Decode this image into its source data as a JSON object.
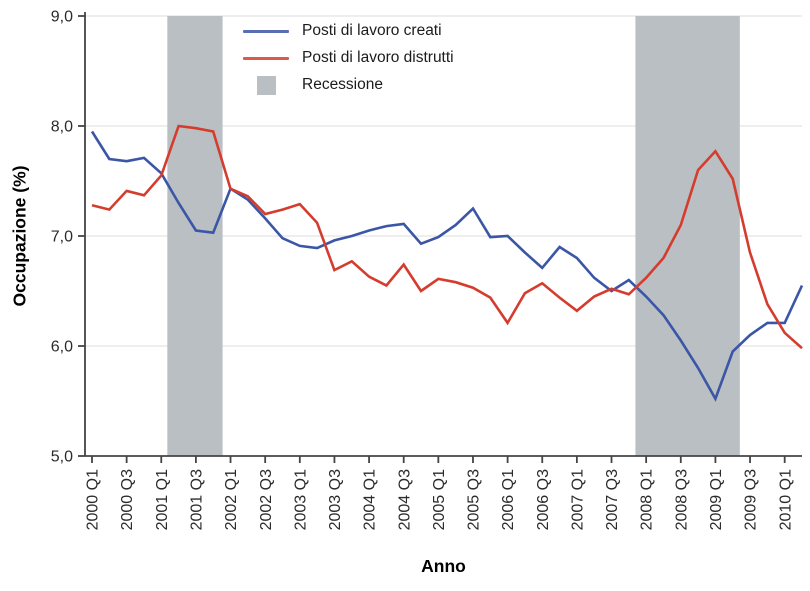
{
  "axes": {
    "x_title": "Anno",
    "y_title": "Occupazione (%)"
  },
  "legend": {
    "items": [
      {
        "label": "Posti di lavoro creati",
        "type": "line",
        "color": "#3b56a6"
      },
      {
        "label": "Posti di lavoro distrutti",
        "type": "line",
        "color": "#d43d2e"
      },
      {
        "label": "Recessione",
        "type": "box",
        "color": "#b9bfc2"
      }
    ]
  },
  "chart_data": {
    "type": "line",
    "title": "",
    "xlabel": "Anno",
    "ylabel": "Occupazione (%)",
    "ylim": [
      5.0,
      9.0
    ],
    "grid": "horizontal",
    "grid_color": "#e3e3e3",
    "axis_color": "#444444",
    "band_color": "#b9bfc2",
    "y_ticks": [
      {
        "value": 5.0,
        "label": "5,0"
      },
      {
        "value": 6.0,
        "label": "6,0"
      },
      {
        "value": 7.0,
        "label": "7,0"
      },
      {
        "value": 8.0,
        "label": "8,0"
      },
      {
        "value": 9.0,
        "label": "9,0"
      }
    ],
    "x_tick_step": 2,
    "x": [
      "2000 Q1",
      "2000 Q2",
      "2000 Q3",
      "2000 Q4",
      "2001 Q1",
      "2001 Q2",
      "2001 Q3",
      "2001 Q4",
      "2002 Q1",
      "2002 Q2",
      "2002 Q3",
      "2002 Q4",
      "2003 Q1",
      "2003 Q2",
      "2003 Q3",
      "2003 Q4",
      "2004 Q1",
      "2004 Q2",
      "2004 Q3",
      "2004 Q4",
      "2005 Q1",
      "2005 Q2",
      "2005 Q3",
      "2005 Q4",
      "2006 Q1",
      "2006 Q2",
      "2006 Q3",
      "2006 Q4",
      "2007 Q1",
      "2007 Q2",
      "2007 Q3",
      "2007 Q4",
      "2008 Q1",
      "2008 Q2",
      "2008 Q3",
      "2008 Q4",
      "2009 Q1",
      "2009 Q2",
      "2009 Q3",
      "2009 Q4",
      "2010 Q1",
      "2010 Q2"
    ],
    "series": [
      {
        "name": "Posti di lavoro creati",
        "color": "#3b56a6",
        "values": [
          7.95,
          7.7,
          7.68,
          7.71,
          7.57,
          7.3,
          7.05,
          7.03,
          7.43,
          7.33,
          7.16,
          6.98,
          6.91,
          6.89,
          6.96,
          7.0,
          7.05,
          7.09,
          7.11,
          6.93,
          6.99,
          7.1,
          7.25,
          6.99,
          7.0,
          6.85,
          6.71,
          6.9,
          6.8,
          6.62,
          6.5,
          6.6,
          6.45,
          6.28,
          6.05,
          5.8,
          5.52,
          5.95,
          6.1,
          6.21,
          6.21,
          6.55
        ]
      },
      {
        "name": "Posti di lavoro distrutti",
        "color": "#d43d2e",
        "values": [
          7.28,
          7.24,
          7.41,
          7.37,
          7.55,
          8.0,
          7.98,
          7.95,
          7.43,
          7.36,
          7.2,
          7.24,
          7.29,
          7.12,
          6.69,
          6.77,
          6.63,
          6.55,
          6.74,
          6.5,
          6.61,
          6.58,
          6.53,
          6.44,
          6.21,
          6.48,
          6.57,
          6.44,
          6.32,
          6.45,
          6.52,
          6.47,
          6.62,
          6.8,
          7.1,
          7.6,
          7.77,
          7.52,
          6.85,
          6.38,
          6.12,
          5.98
        ]
      }
    ],
    "bands": [
      {
        "label": "Recessione",
        "from_index": 4.35,
        "to_index": 7.54
      },
      {
        "label": "Recessione",
        "from_index": 31.38,
        "to_index": 37.41
      }
    ]
  }
}
